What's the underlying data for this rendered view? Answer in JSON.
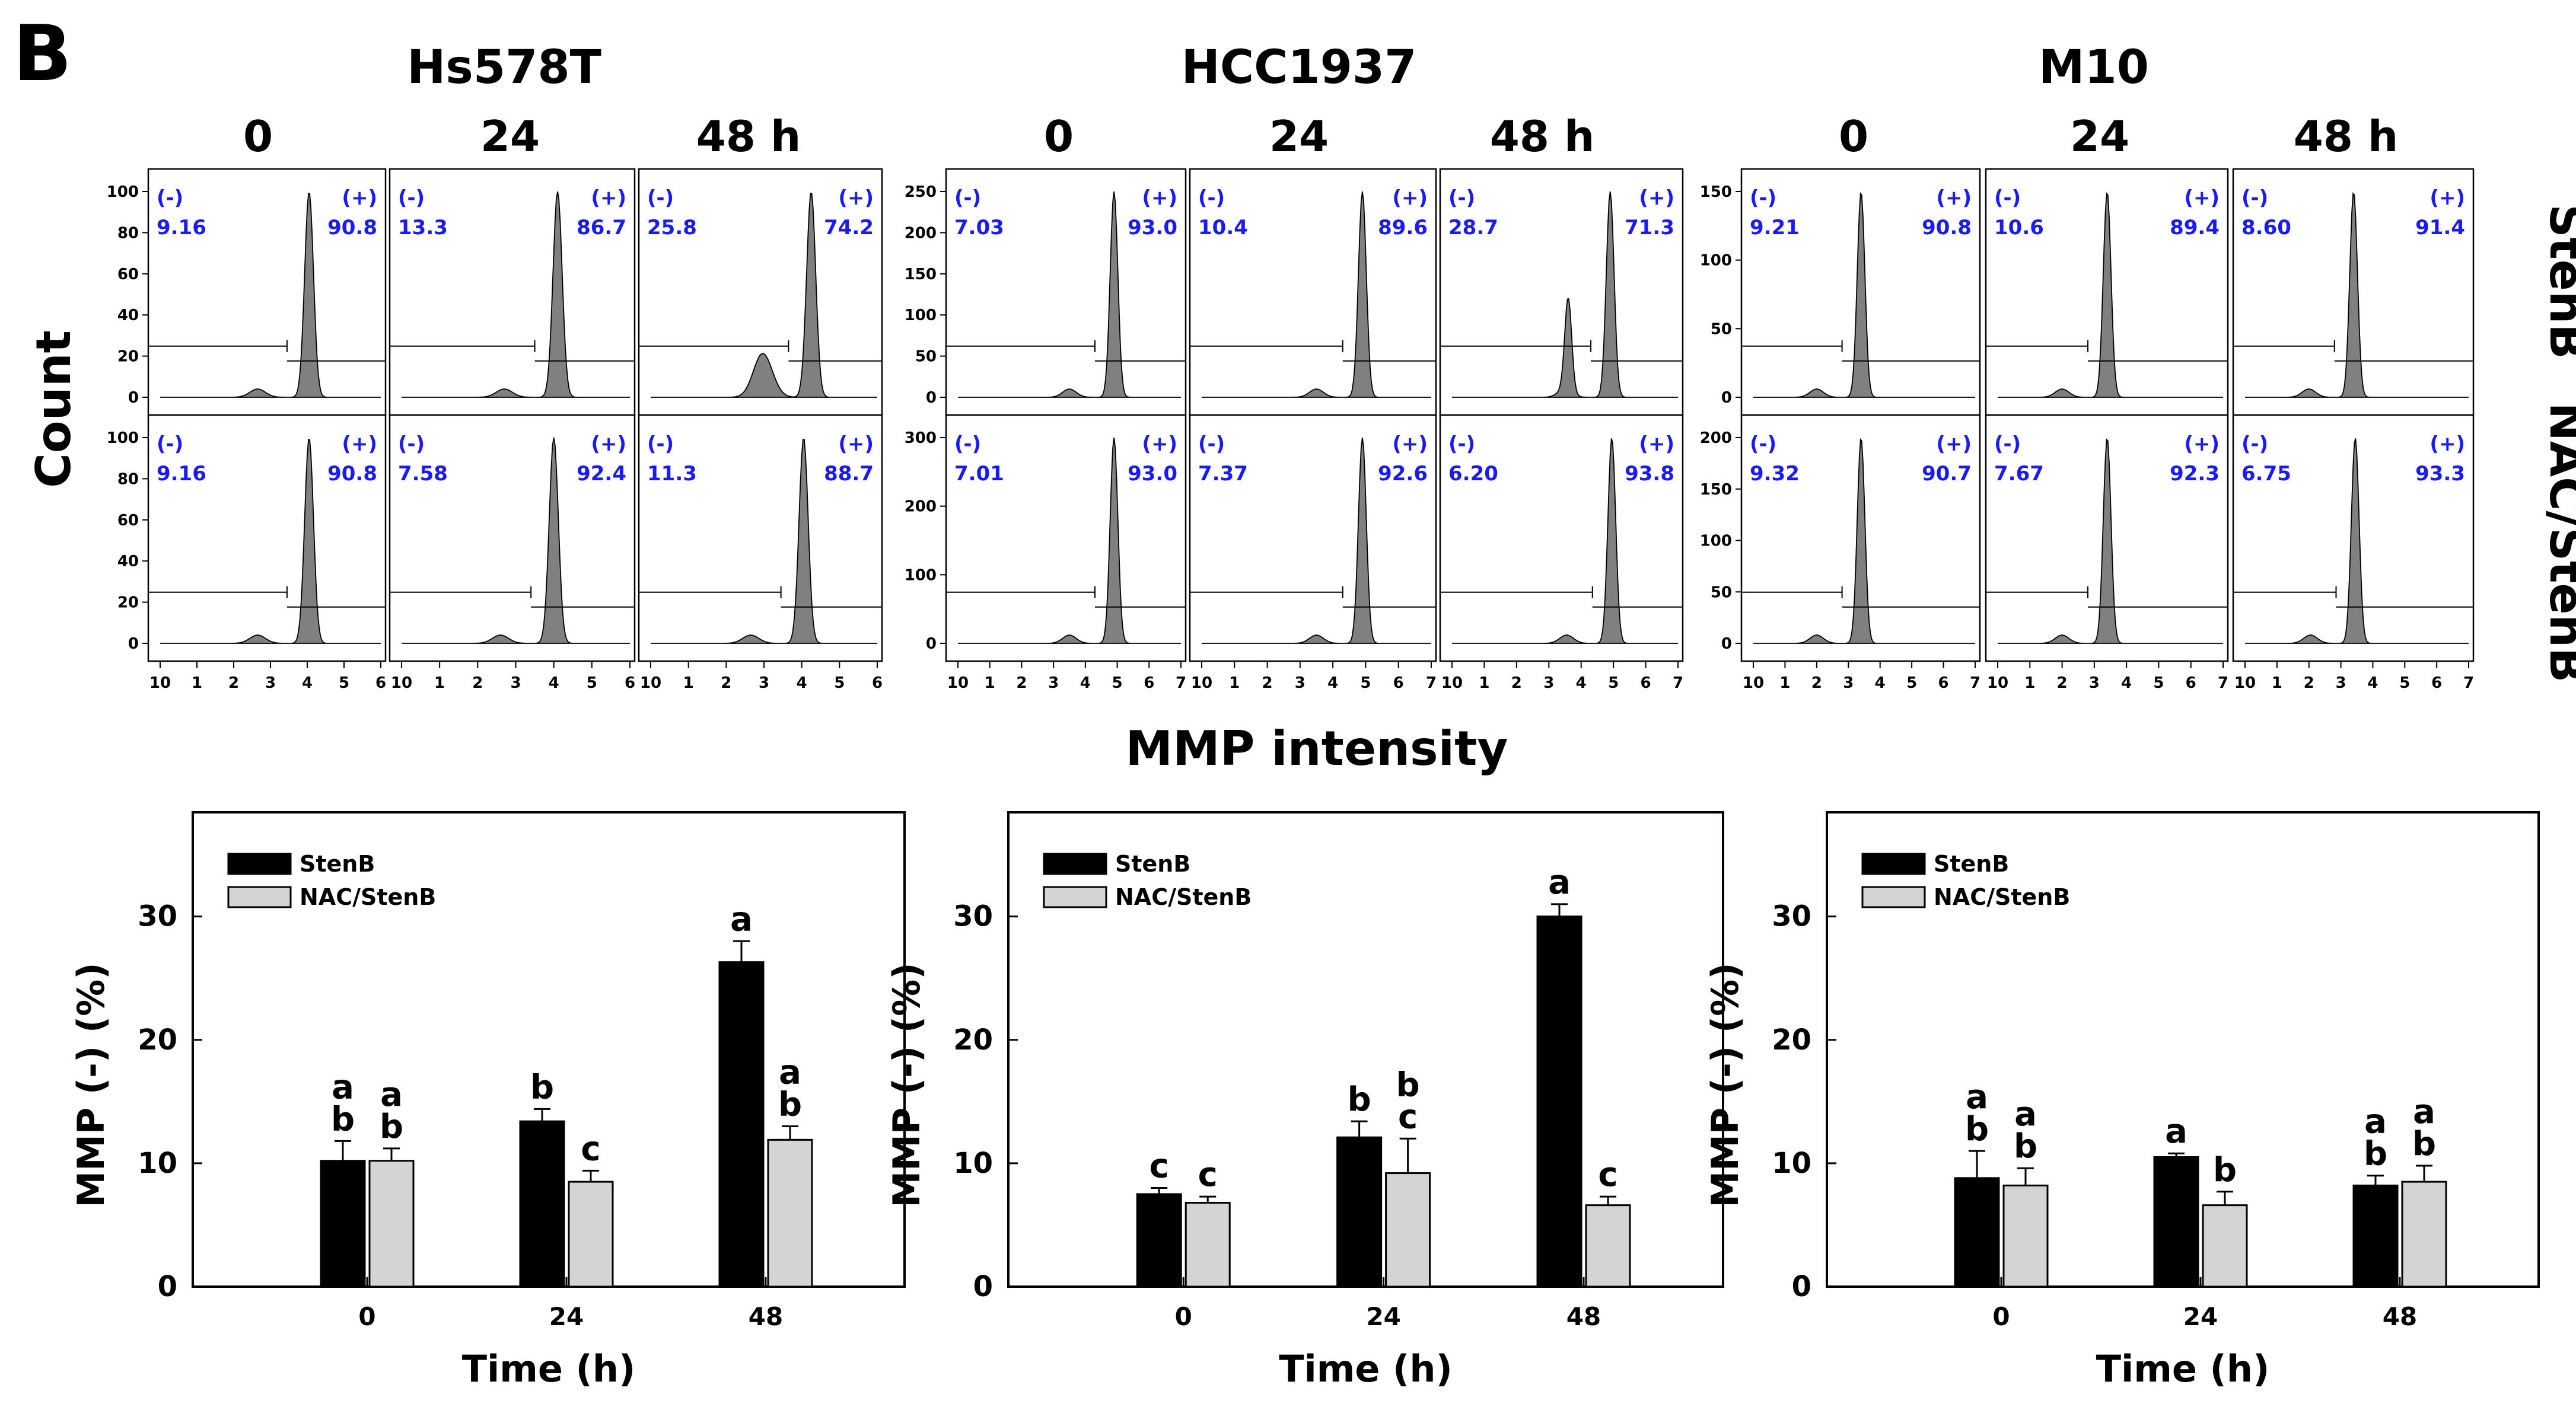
{
  "panel_label": "B",
  "count_label": "Count",
  "mmp_intensity_label": "MMP intensity",
  "row_labels": [
    "StenB",
    "NAC/StenB"
  ],
  "legend": [
    "StenB",
    "NAC/StenB"
  ],
  "colors": {
    "stenb": "#000000",
    "nac": "#d4d4d4",
    "hist_fill": "#808080",
    "gate_text": "#1a1aff"
  },
  "neg_label": "(-)",
  "pos_label": "(+)",
  "chart_data": [
    {
      "type": "bar",
      "title": "Hs578T",
      "timepoints": [
        "0",
        "24",
        "48 h"
      ],
      "categories": [
        "0",
        "24",
        "48"
      ],
      "series": [
        {
          "name": "StenB",
          "values": [
            10.2,
            13.4,
            26.3
          ],
          "errors": [
            1.6,
            1.0,
            1.7
          ],
          "letters": [
            "a\nb",
            "b",
            "a"
          ]
        },
        {
          "name": "NAC/StenB",
          "values": [
            10.2,
            8.5,
            11.9
          ],
          "errors": [
            1.0,
            0.9,
            1.1
          ],
          "letters": [
            "a\nb",
            "c",
            "a\nb"
          ]
        }
      ],
      "xlabel": "Time (h)",
      "ylabel": "MMP (-) (%)",
      "ylim": [
        0,
        37
      ],
      "yticks": [
        0,
        10,
        20,
        30
      ],
      "flow": {
        "xticks": [
          "10",
          "1",
          "2",
          "3",
          "4",
          "5",
          "6"
        ],
        "rows": [
          {
            "ymax": 100,
            "yticks": [
              0,
              20,
              40,
              60,
              80,
              100
            ],
            "plots": [
              {
                "neg": "9.16",
                "pos": "90.8",
                "peak": 4.05
              },
              {
                "neg": "13.3",
                "pos": "86.7",
                "peak": 4.1
              },
              {
                "neg": "25.8",
                "pos": "74.2",
                "peak": 4.25,
                "shoulder": 3.0
              }
            ]
          },
          {
            "ymax": 100,
            "yticks": [
              0,
              20,
              40,
              60,
              80,
              100
            ],
            "plots": [
              {
                "neg": "9.16",
                "pos": "90.8",
                "peak": 4.05
              },
              {
                "neg": "7.58",
                "pos": "92.4",
                "peak": 4.0
              },
              {
                "neg": "11.3",
                "pos": "88.7",
                "peak": 4.05
              }
            ]
          }
        ]
      }
    },
    {
      "type": "bar",
      "title": "HCC1937",
      "timepoints": [
        "0",
        "24",
        "48 h"
      ],
      "categories": [
        "0",
        "24",
        "48"
      ],
      "series": [
        {
          "name": "StenB",
          "values": [
            7.5,
            12.1,
            30.0
          ],
          "errors": [
            0.5,
            1.3,
            1.0
          ],
          "letters": [
            "c",
            "b",
            "a"
          ]
        },
        {
          "name": "NAC/StenB",
          "values": [
            6.8,
            9.2,
            6.6
          ],
          "errors": [
            0.5,
            2.8,
            0.7
          ],
          "letters": [
            "c",
            "b\nc",
            "c"
          ]
        }
      ],
      "xlabel": "Time (h)",
      "ylabel": "MMP (-) (%)",
      "ylim": [
        0,
        37
      ],
      "yticks": [
        0,
        10,
        20,
        30
      ],
      "flow": {
        "xticks": [
          "10",
          "1",
          "2",
          "3",
          "4",
          "5",
          "6",
          "7"
        ],
        "rows": [
          {
            "ymax": 250,
            "yticks": [
              0,
              50,
              100,
              150,
              200,
              250
            ],
            "plots": [
              {
                "neg": "7.03",
                "pos": "93.0",
                "peak": 4.9
              },
              {
                "neg": "10.4",
                "pos": "89.6",
                "peak": 4.9
              },
              {
                "neg": "28.7",
                "pos": "71.3",
                "peak": 4.9,
                "second": 3.6
              }
            ]
          },
          {
            "ymax": 300,
            "yticks": [
              0,
              100,
              200,
              300
            ],
            "plots": [
              {
                "neg": "7.01",
                "pos": "93.0",
                "peak": 4.9
              },
              {
                "neg": "7.37",
                "pos": "92.6",
                "peak": 4.9
              },
              {
                "neg": "6.20",
                "pos": "93.8",
                "peak": 4.95
              }
            ]
          }
        ]
      }
    },
    {
      "type": "bar",
      "title": "M10",
      "timepoints": [
        "0",
        "24",
        "48 h"
      ],
      "categories": [
        "0",
        "24",
        "48"
      ],
      "series": [
        {
          "name": "StenB",
          "values": [
            8.8,
            10.5,
            8.2
          ],
          "errors": [
            2.2,
            0.3,
            0.8
          ],
          "letters": [
            "a\nb",
            "a",
            "a\nb"
          ]
        },
        {
          "name": "NAC/StenB",
          "values": [
            8.2,
            6.6,
            8.5
          ],
          "errors": [
            1.4,
            1.1,
            1.3
          ],
          "letters": [
            "a\nb",
            "b",
            "a\nb"
          ]
        }
      ],
      "xlabel": "Time (h)",
      "ylabel": "MMP (-) (%)",
      "ylim": [
        0,
        37
      ],
      "yticks": [
        0,
        10,
        20,
        30
      ],
      "flow": {
        "xticks": [
          "10",
          "1",
          "2",
          "3",
          "4",
          "5",
          "6",
          "7"
        ],
        "rows": [
          {
            "ymax": 150,
            "yticks": [
              0,
              50,
              100,
              150
            ],
            "plots": [
              {
                "neg": "9.21",
                "pos": "90.8",
                "peak": 3.4
              },
              {
                "neg": "10.6",
                "pos": "89.4",
                "peak": 3.4
              },
              {
                "neg": "8.60",
                "pos": "91.4",
                "peak": 3.4
              }
            ]
          },
          {
            "ymax": 200,
            "yticks": [
              0,
              50,
              100,
              150,
              200
            ],
            "plots": [
              {
                "neg": "9.32",
                "pos": "90.7",
                "peak": 3.4
              },
              {
                "neg": "7.67",
                "pos": "92.3",
                "peak": 3.4
              },
              {
                "neg": "6.75",
                "pos": "93.3",
                "peak": 3.45
              }
            ]
          }
        ]
      }
    }
  ]
}
